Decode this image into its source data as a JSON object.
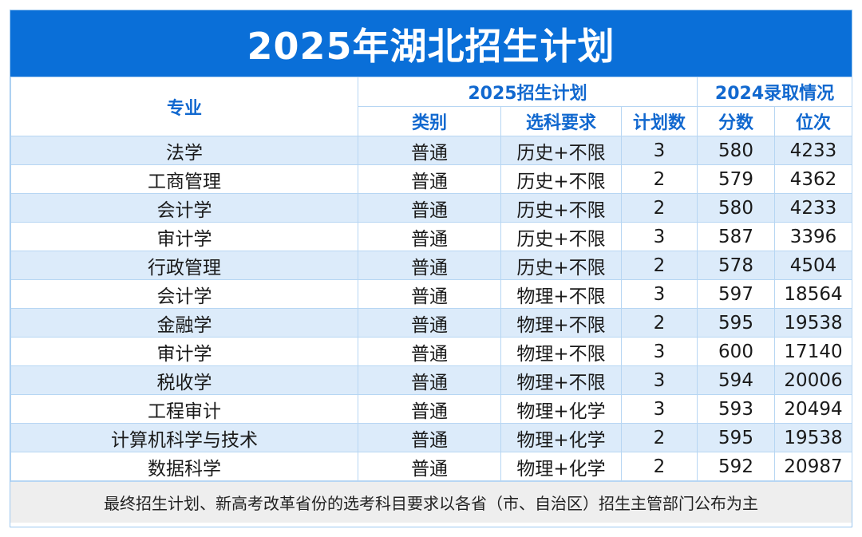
{
  "title": "2025年湖北招生计划",
  "header": {
    "major": "专业",
    "plan_group": "2025招生计划",
    "admit_group": "2024录取情况",
    "category": "类别",
    "subjects": "选科要求",
    "plan_count": "计划数",
    "score": "分数",
    "rank": "位次"
  },
  "rows": [
    {
      "major": "法学",
      "category": "普通",
      "subjects": "历史+不限",
      "plan": "3",
      "score": "580",
      "rank": "4233"
    },
    {
      "major": "工商管理",
      "category": "普通",
      "subjects": "历史+不限",
      "plan": "2",
      "score": "579",
      "rank": "4362"
    },
    {
      "major": "会计学",
      "category": "普通",
      "subjects": "历史+不限",
      "plan": "2",
      "score": "580",
      "rank": "4233"
    },
    {
      "major": "审计学",
      "category": "普通",
      "subjects": "历史+不限",
      "plan": "3",
      "score": "587",
      "rank": "3396"
    },
    {
      "major": "行政管理",
      "category": "普通",
      "subjects": "历史+不限",
      "plan": "2",
      "score": "578",
      "rank": "4504"
    },
    {
      "major": "会计学",
      "category": "普通",
      "subjects": "物理+不限",
      "plan": "3",
      "score": "597",
      "rank": "18564"
    },
    {
      "major": "金融学",
      "category": "普通",
      "subjects": "物理+不限",
      "plan": "2",
      "score": "595",
      "rank": "19538"
    },
    {
      "major": "审计学",
      "category": "普通",
      "subjects": "物理+不限",
      "plan": "3",
      "score": "600",
      "rank": "17140"
    },
    {
      "major": "税收学",
      "category": "普通",
      "subjects": "物理+不限",
      "plan": "3",
      "score": "594",
      "rank": "20006"
    },
    {
      "major": "工程审计",
      "category": "普通",
      "subjects": "物理+化学",
      "plan": "3",
      "score": "593",
      "rank": "20494"
    },
    {
      "major": "计算机科学与技术",
      "category": "普通",
      "subjects": "物理+化学",
      "plan": "2",
      "score": "595",
      "rank": "19538"
    },
    {
      "major": "数据科学",
      "category": "普通",
      "subjects": "物理+化学",
      "plan": "2",
      "score": "592",
      "rank": "20987"
    }
  ],
  "footer": "最终招生计划、新高考改革省份的选考科目要求以各省（市、自治区）招生主管部门公布为主",
  "colors": {
    "title_bg": "#0a6fd8",
    "header_text": "#1168cf",
    "stripe": "#dcebfa",
    "footer_bg": "#eeeeee"
  }
}
